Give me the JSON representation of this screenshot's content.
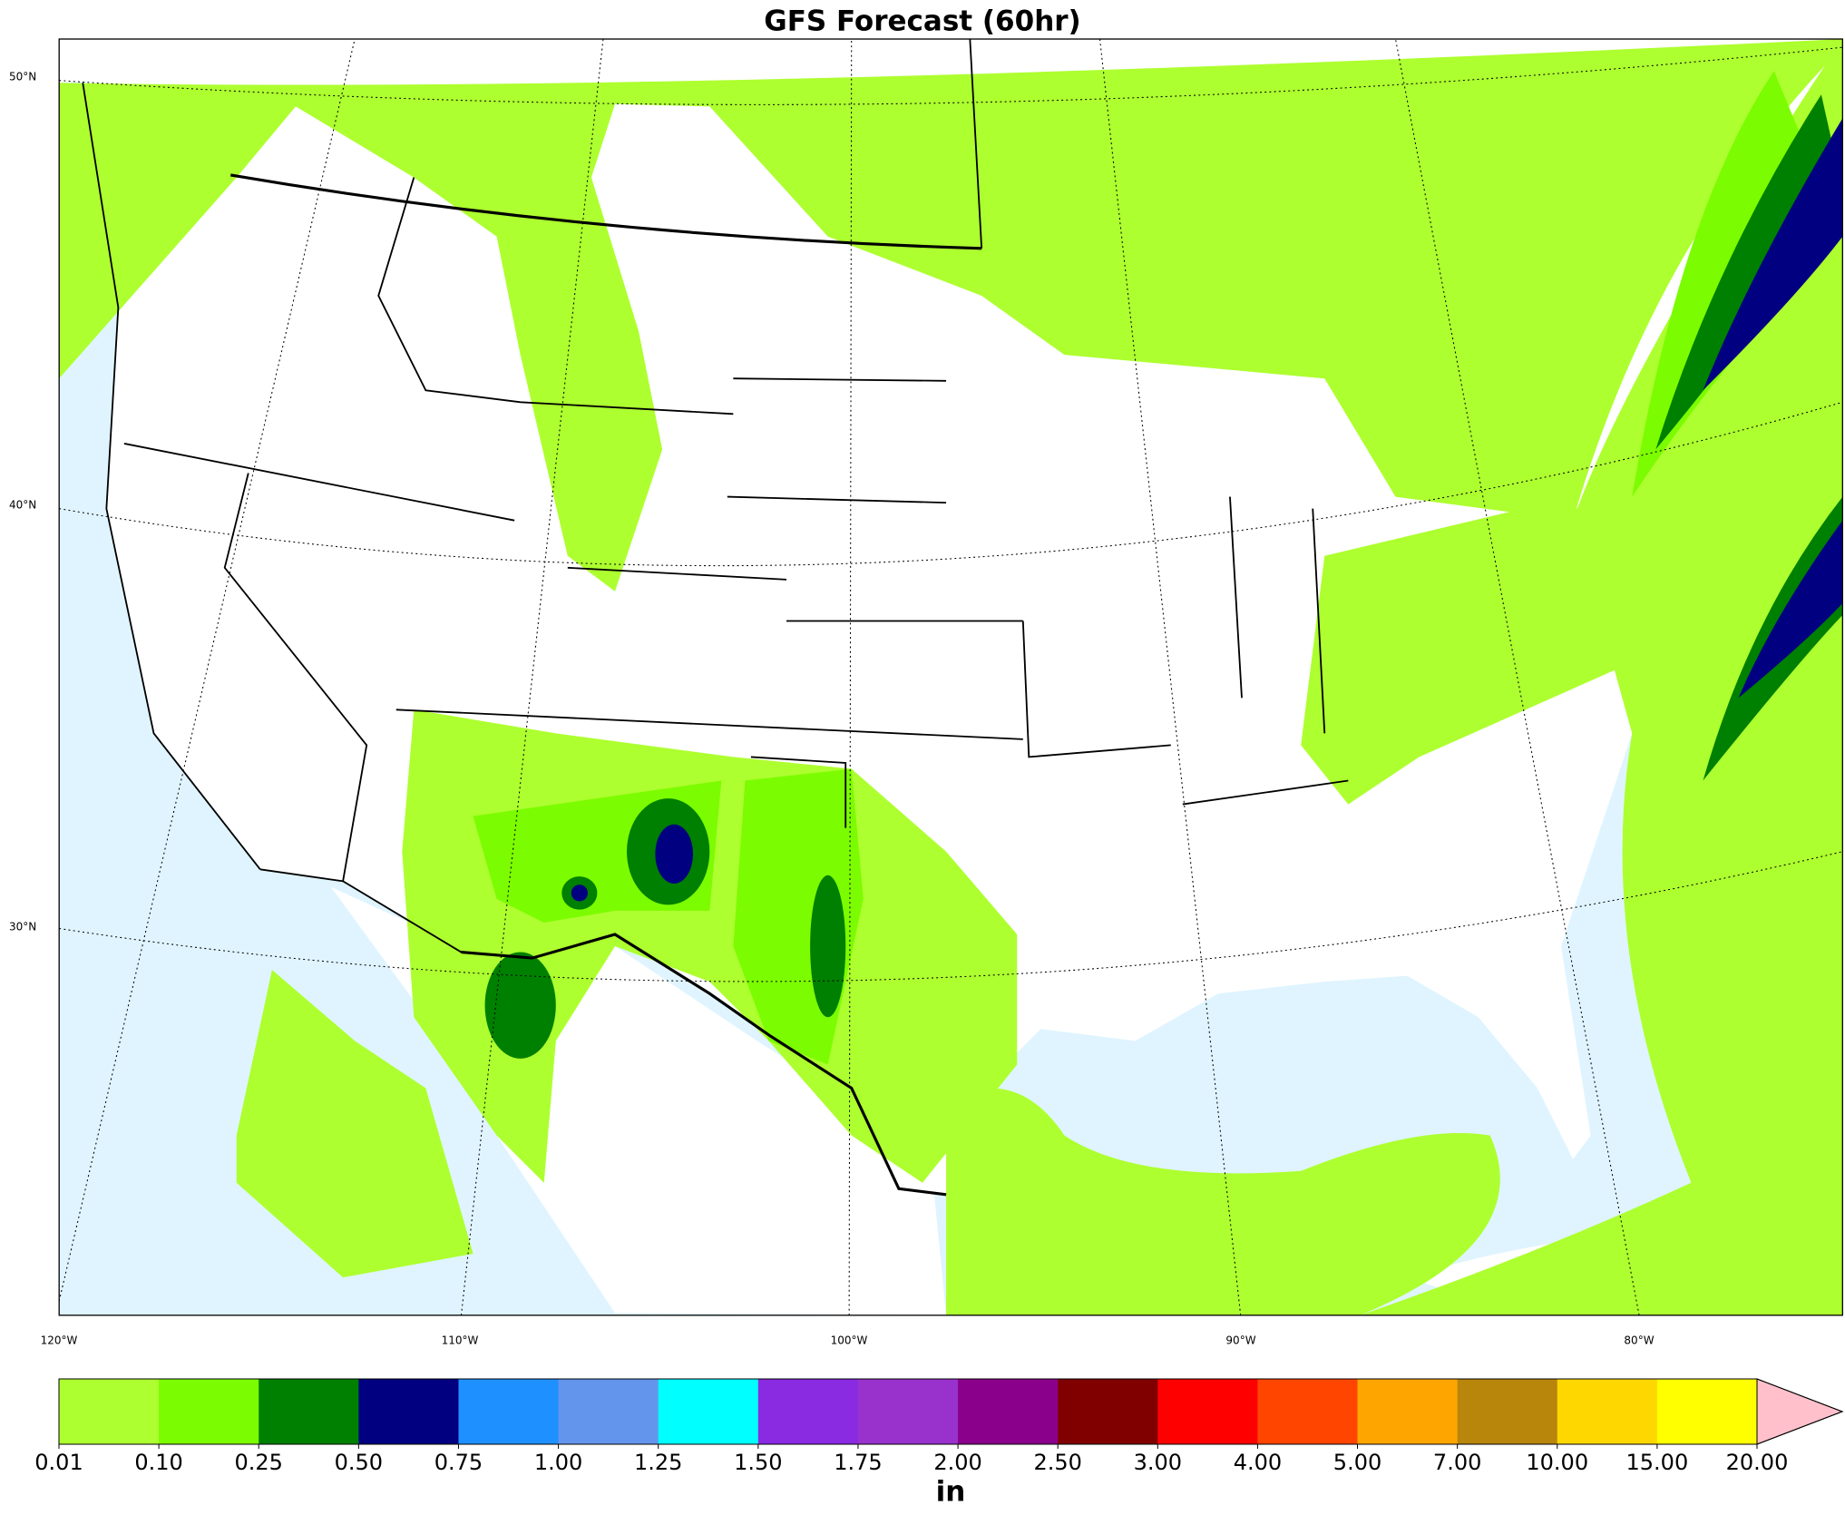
{
  "title": "GFS Forecast (60hr)",
  "map": {
    "lat_labels": [
      "50°N",
      "40°N",
      "30°N"
    ],
    "lon_labels": [
      "120°W",
      "110°W",
      "100°W",
      "90°W",
      "80°W"
    ]
  },
  "colorbar": {
    "ticks": [
      {
        "value": 0.01,
        "label": "0.01"
      },
      {
        "value": 0.1,
        "label": "0.10"
      },
      {
        "value": 0.25,
        "label": "0.25"
      },
      {
        "value": 0.5,
        "label": "0.50"
      },
      {
        "value": 0.75,
        "label": "0.75"
      },
      {
        "value": 1,
        "label": "1.00"
      },
      {
        "value": 1.25,
        "label": "1.25"
      },
      {
        "value": 1.5,
        "label": "1.50"
      },
      {
        "value": 1.75,
        "label": "1.75"
      },
      {
        "value": 2,
        "label": "2.00"
      },
      {
        "value": 2.5,
        "label": "2.50"
      },
      {
        "value": 3,
        "label": "3.00"
      },
      {
        "value": 4,
        "label": "4.00"
      },
      {
        "value": 5,
        "label": "5.00"
      },
      {
        "value": 7,
        "label": "7.00"
      },
      {
        "value": 10,
        "label": "10.00"
      },
      {
        "value": 15,
        "label": "15.00"
      },
      {
        "value": 20,
        "label": "20.00"
      }
    ],
    "colors": [
      "#adff2f",
      "#7cfc00",
      "#008000",
      "#000080",
      "#1e90ff",
      "#6495ed",
      "#00ffff",
      "#8a2be2",
      "#9932cc",
      "#8b008b",
      "#800000",
      "#ff0000",
      "#ff4500",
      "#ffa500",
      "#b8860b",
      "#ffd700",
      "#ffff00"
    ],
    "extend_color": "#ffc0cb",
    "unit": "in"
  }
}
